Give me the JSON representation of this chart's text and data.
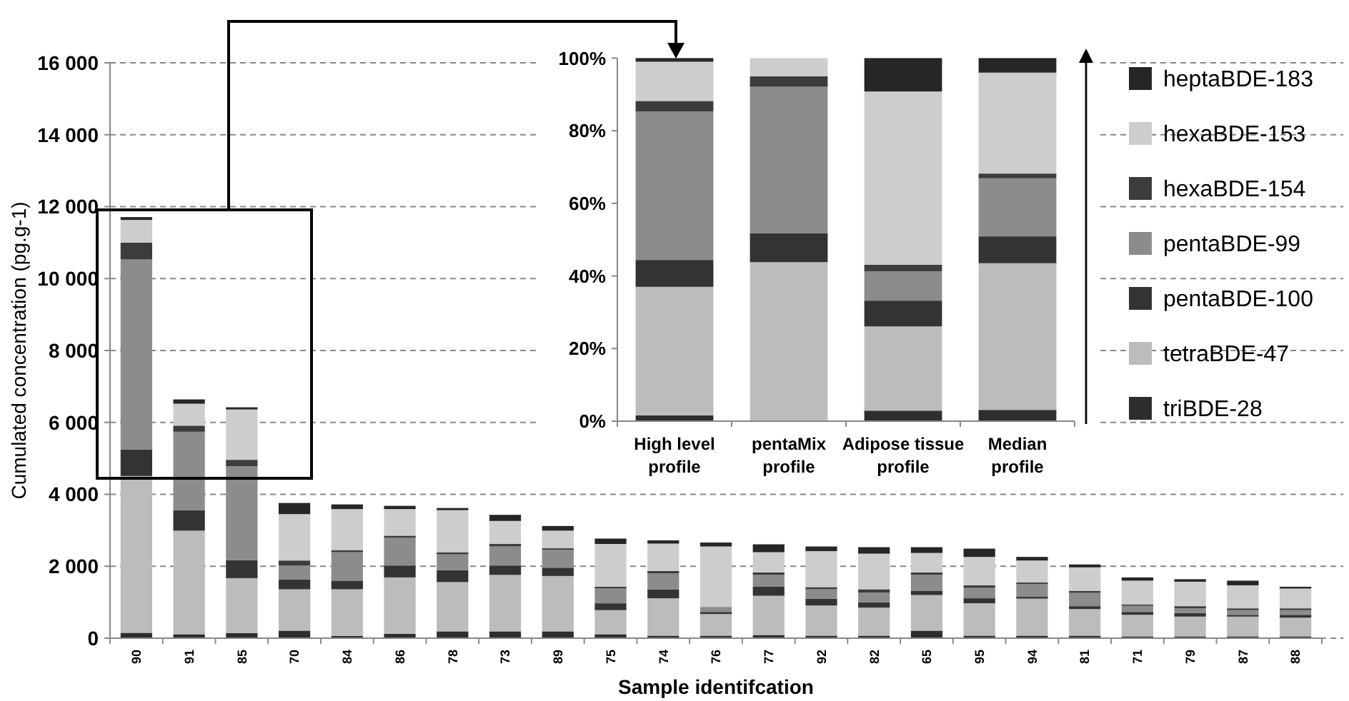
{
  "chart_data": [
    {
      "type": "bar",
      "stacked": true,
      "xlabel": "Sample identifcation",
      "ylabel": "Cumulated concentration (pg.g-1)",
      "categories": [
        "90",
        "91",
        "85",
        "70",
        "84",
        "86",
        "78",
        "73",
        "89",
        "75",
        "74",
        "76",
        "77",
        "92",
        "82",
        "65",
        "95",
        "94",
        "81",
        "71",
        "79",
        "87",
        "88"
      ],
      "ylim": [
        0,
        16000
      ],
      "yticks": [
        0,
        {
          "value": 2000,
          "label": "2 000"
        },
        {
          "value": 4000,
          "label": "4 000"
        },
        {
          "value": 6000,
          "label": "6 000"
        },
        {
          "value": 8000,
          "label": "8 000"
        },
        {
          "value": 10000,
          "label": "10 000"
        },
        {
          "value": 12000,
          "label": "12 000"
        },
        {
          "value": 14000,
          "label": "14 000"
        },
        {
          "value": 16000,
          "label": "16 000"
        }
      ],
      "grid": "y",
      "legend": "right",
      "series": [
        {
          "name": "triBDE-28",
          "color": "#2e2e2e",
          "values": [
            150,
            110,
            140,
            210,
            60,
            120,
            190,
            190,
            190,
            110,
            70,
            70,
            90,
            70,
            70,
            210,
            70,
            70,
            70,
            50,
            50,
            50,
            50
          ]
        },
        {
          "name": "tetraBDE-47",
          "color": "#bcbcbc",
          "values": [
            4360,
            2880,
            1530,
            1150,
            1300,
            1570,
            1370,
            1570,
            1540,
            670,
            1040,
            600,
            1090,
            840,
            780,
            990,
            900,
            1030,
            740,
            600,
            550,
            550,
            520
          ]
        },
        {
          "name": "pentaBDE-100",
          "color": "#333333",
          "values": [
            740,
            570,
            500,
            270,
            240,
            330,
            330,
            260,
            230,
            190,
            250,
            60,
            260,
            190,
            150,
            110,
            140,
            50,
            80,
            80,
            100,
            50,
            80
          ]
        },
        {
          "name": "pentaBDE-99",
          "color": "#8c8c8c",
          "values": [
            5280,
            2180,
            2610,
            390,
            790,
            770,
            440,
            530,
            500,
            410,
            440,
            140,
            320,
            260,
            270,
            450,
            290,
            360,
            370,
            170,
            130,
            130,
            130
          ]
        },
        {
          "name": "hexaBDE-154",
          "color": "#3c3c3c",
          "values": [
            470,
            170,
            180,
            140,
            60,
            60,
            60,
            70,
            40,
            50,
            70,
            0,
            70,
            60,
            90,
            70,
            70,
            40,
            50,
            40,
            60,
            50,
            50
          ]
        },
        {
          "name": "hexaBDE-153",
          "color": "#cdcdcd",
          "values": [
            630,
            610,
            1400,
            1290,
            1140,
            740,
            1170,
            640,
            490,
            1190,
            760,
            1680,
            560,
            1000,
            990,
            540,
            790,
            610,
            660,
            660,
            680,
            640,
            550
          ]
        },
        {
          "name": "heptaBDE-183",
          "color": "#262626",
          "values": [
            80,
            120,
            60,
            310,
            130,
            90,
            60,
            170,
            130,
            150,
            90,
            110,
            220,
            130,
            180,
            160,
            230,
            100,
            80,
            90,
            70,
            130,
            50
          ]
        }
      ]
    },
    {
      "type": "bar",
      "stacked": true,
      "categories": [
        "High level profile",
        "pentaMix profile",
        "Adipose tissue profile",
        "Median profile"
      ],
      "ylim": [
        0,
        100
      ],
      "yticks": [
        {
          "value": 0,
          "label": "0%"
        },
        {
          "value": 20,
          "label": "20%"
        },
        {
          "value": 40,
          "label": "40%"
        },
        {
          "value": 60,
          "label": "60%"
        },
        {
          "value": 80,
          "label": "80%"
        },
        {
          "value": 100,
          "label": "100%"
        }
      ],
      "series": [
        {
          "color": "#2e2e2e",
          "values": [
            1.6,
            0,
            2.9,
            3.1
          ]
        },
        {
          "color": "#bcbcbc",
          "values": [
            35.4,
            43.8,
            23.2,
            40.4
          ]
        },
        {
          "color": "#333333",
          "values": [
            7.4,
            8,
            7.1,
            7.4
          ]
        },
        {
          "color": "#8c8c8c",
          "values": [
            40.9,
            40.3,
            8.1,
            16
          ]
        },
        {
          "color": "#3c3c3c",
          "values": [
            2.9,
            2.9,
            1.8,
            1.3
          ]
        },
        {
          "color": "#cdcdcd",
          "values": [
            10.8,
            5,
            47.7,
            27.8
          ]
        },
        {
          "color": "#262626",
          "values": [
            1,
            0,
            9.2,
            4
          ]
        }
      ]
    }
  ]
}
